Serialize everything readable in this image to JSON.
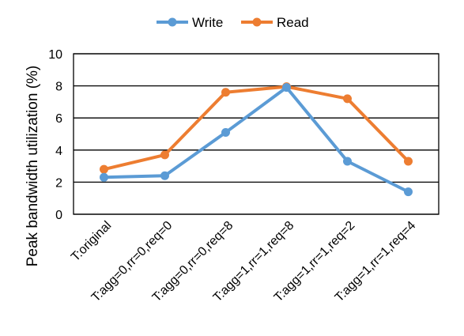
{
  "chart_data": {
    "type": "line",
    "title": "",
    "xlabel": "",
    "ylabel": "Peak bandwidth utilization (%)",
    "categories": [
      "T:original",
      "T:agg=0,rr=0,req=0",
      "T:agg=0,rr=0,req=8",
      "T:agg=1,rr=1,req=8",
      "T:agg=1,rr=1,req=2",
      "T:agg=1,rr=1,req=4"
    ],
    "ylim": [
      0,
      10
    ],
    "yticks": [
      0,
      2,
      4,
      6,
      8,
      10
    ],
    "grid": true,
    "legend_position": "top-center",
    "series": [
      {
        "name": "Write",
        "color": "#5b9bd5",
        "values": [
          2.3,
          2.4,
          5.1,
          7.9,
          3.3,
          1.4
        ]
      },
      {
        "name": "Read",
        "color": "#ed7d31",
        "values": [
          2.8,
          3.7,
          7.6,
          7.95,
          7.2,
          3.3
        ]
      }
    ]
  }
}
